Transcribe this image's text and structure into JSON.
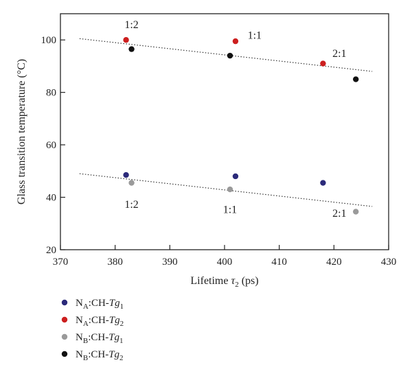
{
  "chart_data": {
    "type": "scatter",
    "xlabel": "Lifetime τ2 (ps)",
    "ylabel": "Glass transition temperature (°C)",
    "xlim": [
      370,
      430
    ],
    "ylim": [
      20,
      110
    ],
    "x_ticks": [
      370,
      380,
      390,
      400,
      410,
      420,
      430
    ],
    "y_ticks": [
      20,
      40,
      60,
      80,
      100
    ],
    "series": [
      {
        "name": "NA:CH-Tg1",
        "color": "#2b2a7a",
        "points": [
          [
            382,
            48.5
          ],
          [
            402,
            48
          ],
          [
            418,
            45.5
          ]
        ]
      },
      {
        "name": "NA:CH-Tg2",
        "color": "#cc1f1f",
        "points": [
          [
            382,
            100
          ],
          [
            402,
            99.5
          ],
          [
            418,
            91
          ]
        ]
      },
      {
        "name": "NB:CH-Tg1",
        "color": "#9a9a9a",
        "points": [
          [
            383,
            45.5
          ],
          [
            401,
            43
          ],
          [
            424,
            34.5
          ]
        ]
      },
      {
        "name": "NB:CH-Tg2",
        "color": "#111111",
        "points": [
          [
            383,
            96.5
          ],
          [
            401,
            94
          ],
          [
            424,
            85
          ]
        ]
      }
    ],
    "trendlines": [
      {
        "from": [
          373.5,
          100.5
        ],
        "to": [
          427,
          88
        ]
      },
      {
        "from": [
          373.5,
          49
        ],
        "to": [
          427,
          36.5
        ]
      }
    ],
    "annotations": [
      {
        "text": "1:2",
        "x": 383,
        "y": 104.5
      },
      {
        "text": "1:1",
        "x": 405.5,
        "y": 100.5
      },
      {
        "text": "2:1",
        "x": 421,
        "y": 93.5
      },
      {
        "text": "1:2",
        "x": 383,
        "y": 36
      },
      {
        "text": "1:1",
        "x": 401,
        "y": 34
      },
      {
        "text": "2:1",
        "x": 421,
        "y": 32.5
      }
    ],
    "legend_placement": "below-left",
    "legend": [
      {
        "main": "N",
        "sub1": "A",
        "mid": ":CH-",
        "ital": "Tg",
        "sub2": "1",
        "color": "#2b2a7a"
      },
      {
        "main": "N",
        "sub1": "A",
        "mid": ":CH-",
        "ital": "Tg",
        "sub2": "2",
        "color": "#cc1f1f"
      },
      {
        "main": "N",
        "sub1": "B",
        "mid": ":CH-",
        "ital": "Tg",
        "sub2": "1",
        "color": "#9a9a9a"
      },
      {
        "main": "N",
        "sub1": "B",
        "mid": ":CH-",
        "ital": "Tg",
        "sub2": "2",
        "color": "#111111"
      }
    ],
    "axis_title_parts": {
      "x_main": "Lifetime ",
      "x_symbol": "τ",
      "x_sub": "2",
      "x_unit": " (ps)",
      "y_text": "Glass transition temperature (°C)"
    }
  }
}
